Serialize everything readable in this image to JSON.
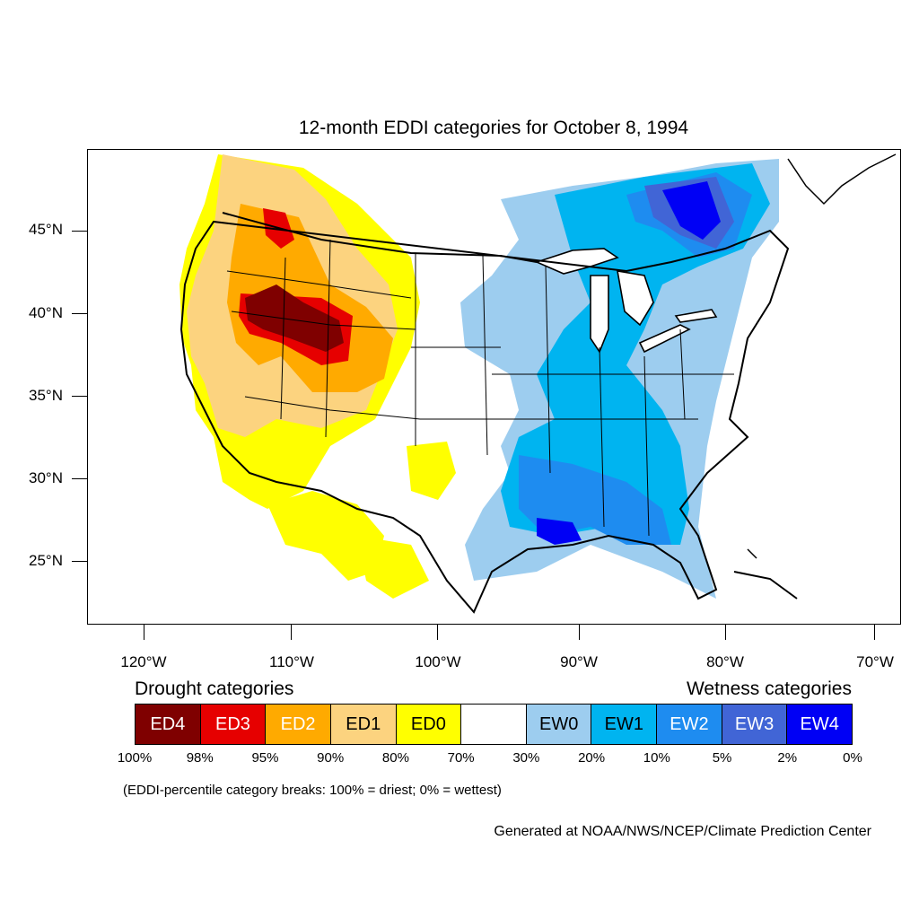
{
  "title": "12-month EDDI categories for October 8, 1994",
  "latitude_labels": [
    "45°N",
    "40°N",
    "35°N",
    "30°N",
    "25°N"
  ],
  "longitude_labels": [
    "120°W",
    "110°W",
    "100°W",
    "90°W",
    "80°W",
    "70°W"
  ],
  "legend": {
    "drought_heading": "Drought categories",
    "wetness_heading": "Wetness categories",
    "categories": [
      {
        "label": "ED4",
        "color": "#7f0000",
        "text_color": "#ffffff"
      },
      {
        "label": "ED3",
        "color": "#e60000",
        "text_color": "#ffffff"
      },
      {
        "label": "ED2",
        "color": "#ffaa00",
        "text_color": "#ffffff"
      },
      {
        "label": "ED1",
        "color": "#fcd37f",
        "text_color": "#000000"
      },
      {
        "label": "ED0",
        "color": "#ffff00",
        "text_color": "#000000"
      },
      {
        "label": "",
        "color": "#ffffff",
        "text_color": "#000000"
      },
      {
        "label": "EW0",
        "color": "#9dcdef",
        "text_color": "#000000"
      },
      {
        "label": "EW1",
        "color": "#00b4f0",
        "text_color": "#000000"
      },
      {
        "label": "EW2",
        "color": "#1e8cf0",
        "text_color": "#ffffff"
      },
      {
        "label": "EW3",
        "color": "#4165d6",
        "text_color": "#ffffff"
      },
      {
        "label": "EW4",
        "color": "#0000f5",
        "text_color": "#ffffff"
      }
    ],
    "percentiles": [
      "100%",
      "98%",
      "95%",
      "90%",
      "80%",
      "70%",
      "30%",
      "20%",
      "10%",
      "5%",
      "2%",
      "0%"
    ]
  },
  "note": "(EDDI-percentile category breaks: 100% = driest; 0% = wettest)",
  "credit": "Generated at NOAA/NWS/NCEP/Climate Prediction Center"
}
